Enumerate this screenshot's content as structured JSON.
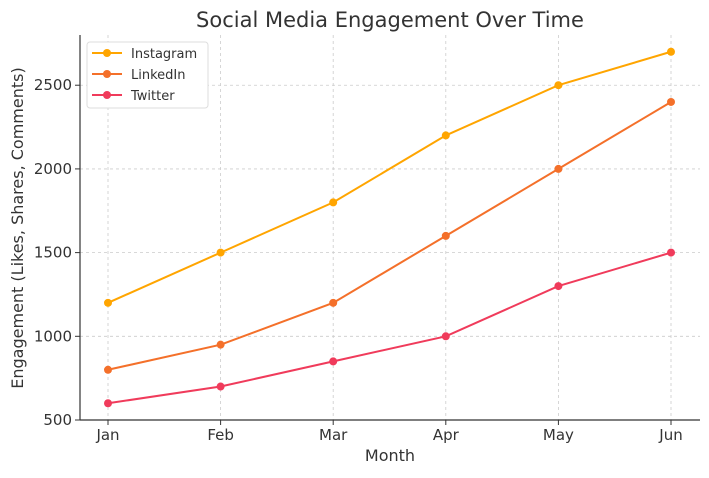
{
  "chart_data": {
    "type": "line",
    "title": "Social Media Engagement Over Time",
    "xlabel": "Month",
    "ylabel": "Engagement (Likes, Shares, Comments)",
    "categories": [
      "Jan",
      "Feb",
      "Mar",
      "Apr",
      "May",
      "Jun"
    ],
    "ylim": [
      500,
      2800
    ],
    "yticks": [
      500,
      1000,
      1500,
      2000,
      2500
    ],
    "grid": true,
    "legend_position": "top-left",
    "series": [
      {
        "name": "Instagram",
        "color": "#FFA500",
        "values": [
          1200,
          1500,
          1800,
          2200,
          2500,
          2700
        ]
      },
      {
        "name": "LinkedIn",
        "color": "#F4702A",
        "values": [
          800,
          950,
          1200,
          1600,
          2000,
          2400
        ]
      },
      {
        "name": "Twitter",
        "color": "#F03B5B",
        "values": [
          600,
          700,
          850,
          1000,
          1300,
          1500
        ]
      }
    ]
  }
}
